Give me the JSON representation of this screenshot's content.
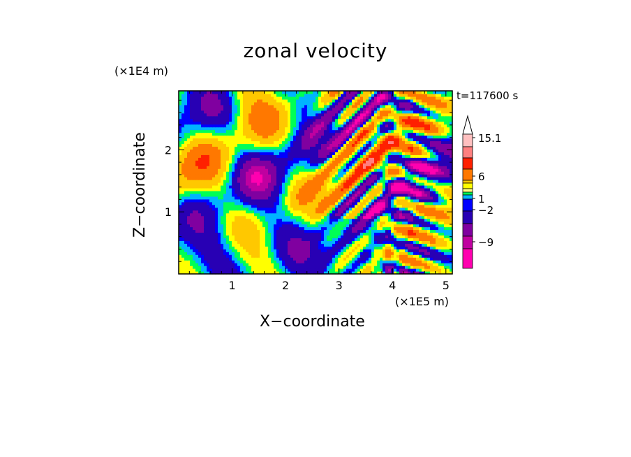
{
  "chart_data": {
    "type": "heatmap",
    "title": "zonal velocity",
    "time_label": "t=117600 s",
    "xlabel": "X−coordinate",
    "ylabel": "Z−coordinate",
    "x_unit": "(×1E5 m)",
    "y_unit": "(×1E4 m)",
    "xlim": [
      0,
      5.12
    ],
    "ylim": [
      0,
      2.95
    ],
    "x_ticks": [
      "1",
      "2",
      "3",
      "4",
      "5"
    ],
    "y_ticks": [
      "1",
      "2"
    ],
    "colorbar": {
      "labels": [
        "15.1",
        "6",
        "1",
        "−2",
        "−9"
      ],
      "colors": [
        "#ff00b0",
        "#c000a0",
        "#8000a0",
        "#2800b4",
        "#0000ff",
        "#00b4ff",
        "#00ff55",
        "#ffff00",
        "#ffc800",
        "#ff7800",
        "#ff2000",
        "#ff8080",
        "#ffc0c0",
        "#ffffff"
      ],
      "extend": "max"
    },
    "palette": [
      "#ff00b0",
      "#c000a0",
      "#8000a0",
      "#2800b4",
      "#0000ff",
      "#00b4ff",
      "#00ff55",
      "#ffff00",
      "#ffc800",
      "#ff7800",
      "#ff2000",
      "#ff8080"
    ],
    "grid": false
  }
}
